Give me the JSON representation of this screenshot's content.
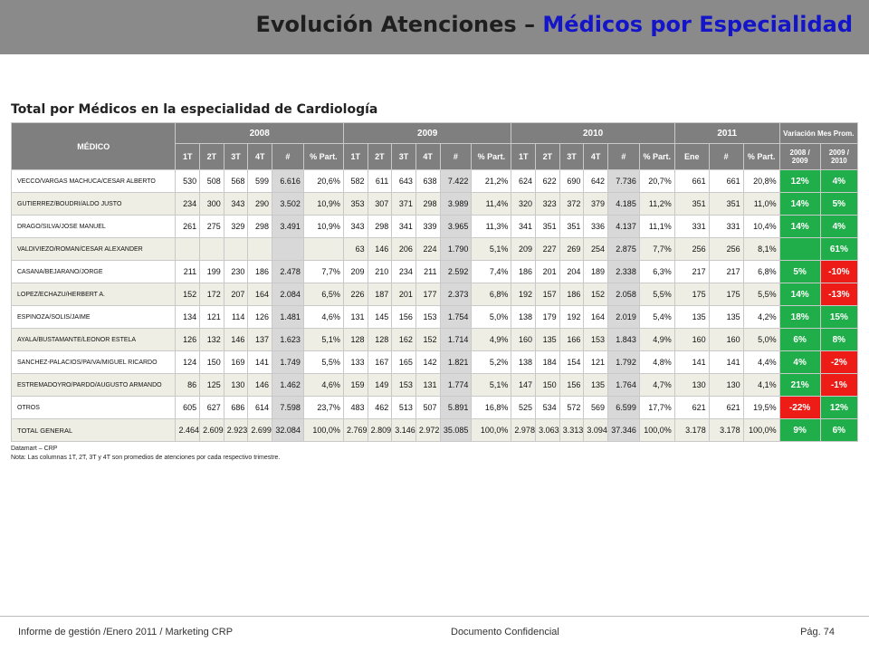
{
  "title": {
    "part1": "Evolución Atenciones – ",
    "part2": "Médicos por Especialidad"
  },
  "subtitle": "Total por Médicos en la especialidad de Cardiología",
  "table": {
    "medico_header": "MÉDICO",
    "years": [
      "2008",
      "2009",
      "2010",
      "2011"
    ],
    "variation_header": "Variación Mes Prom.",
    "var_cols": [
      "2008 / 2009",
      "2009 / 2010"
    ],
    "quarter_cols": [
      "1T",
      "2T",
      "3T",
      "4T",
      "#",
      "% Part."
    ],
    "cols_2010": [
      "1T",
      "2T",
      "3T",
      "4T",
      "#",
      "% Part."
    ],
    "cols_2011": [
      "Ene",
      "#",
      "% Part."
    ],
    "rows": [
      {
        "name": "VECCO/VARGAS MACHUCA/CESAR ALBERTO",
        "y2008": [
          "530",
          "508",
          "568",
          "599",
          "6.616",
          "20,6%"
        ],
        "y2009": [
          "582",
          "611",
          "643",
          "638",
          "7.422",
          "21,2%"
        ],
        "y2010": [
          "624",
          "622",
          "690",
          "642",
          "7.736",
          "20,7%"
        ],
        "y2011": [
          "661",
          "661",
          "20,8%"
        ],
        "v1": "12%",
        "v2": "4%"
      },
      {
        "name": "GUTIERREZ/BOUDRI/ALDO JUSTO",
        "y2008": [
          "234",
          "300",
          "343",
          "290",
          "3.502",
          "10,9%"
        ],
        "y2009": [
          "353",
          "307",
          "371",
          "298",
          "3.989",
          "11,4%"
        ],
        "y2010": [
          "320",
          "323",
          "372",
          "379",
          "4.185",
          "11,2%"
        ],
        "y2011": [
          "351",
          "351",
          "11,0%"
        ],
        "v1": "14%",
        "v2": "5%"
      },
      {
        "name": "DRAGO/SILVA/JOSE MANUEL",
        "y2008": [
          "261",
          "275",
          "329",
          "298",
          "3.491",
          "10,9%"
        ],
        "y2009": [
          "343",
          "298",
          "341",
          "339",
          "3.965",
          "11,3%"
        ],
        "y2010": [
          "341",
          "351",
          "351",
          "336",
          "4.137",
          "11,1%"
        ],
        "y2011": [
          "331",
          "331",
          "10,4%"
        ],
        "v1": "14%",
        "v2": "4%"
      },
      {
        "name": "VALDIVIEZO/ROMAN/CESAR ALEXANDER",
        "y2008": [
          "",
          "",
          "",
          "",
          "",
          ""
        ],
        "y2009": [
          "63",
          "146",
          "206",
          "224",
          "1.790",
          "5,1%"
        ],
        "y2010": [
          "209",
          "227",
          "269",
          "254",
          "2.875",
          "7,7%"
        ],
        "y2011": [
          "256",
          "256",
          "8,1%"
        ],
        "v1": "",
        "v2": "61%"
      },
      {
        "name": "CASANA/BEJARANO/JORGE",
        "y2008": [
          "211",
          "199",
          "230",
          "186",
          "2.478",
          "7,7%"
        ],
        "y2009": [
          "209",
          "210",
          "234",
          "211",
          "2.592",
          "7,4%"
        ],
        "y2010": [
          "186",
          "201",
          "204",
          "189",
          "2.338",
          "6,3%"
        ],
        "y2011": [
          "217",
          "217",
          "6,8%"
        ],
        "v1": "5%",
        "v2": "-10%"
      },
      {
        "name": "LOPEZ/ECHAZU/HERBERT A.",
        "y2008": [
          "152",
          "172",
          "207",
          "164",
          "2.084",
          "6,5%"
        ],
        "y2009": [
          "226",
          "187",
          "201",
          "177",
          "2.373",
          "6,8%"
        ],
        "y2010": [
          "192",
          "157",
          "186",
          "152",
          "2.058",
          "5,5%"
        ],
        "y2011": [
          "175",
          "175",
          "5,5%"
        ],
        "v1": "14%",
        "v2": "-13%"
      },
      {
        "name": "ESPINOZA/SOLIS/JAIME",
        "y2008": [
          "134",
          "121",
          "114",
          "126",
          "1.481",
          "4,6%"
        ],
        "y2009": [
          "131",
          "145",
          "156",
          "153",
          "1.754",
          "5,0%"
        ],
        "y2010": [
          "138",
          "179",
          "192",
          "164",
          "2.019",
          "5,4%"
        ],
        "y2011": [
          "135",
          "135",
          "4,2%"
        ],
        "v1": "18%",
        "v2": "15%"
      },
      {
        "name": "AYALA/BUSTAMANTE/LEONOR ESTELA",
        "y2008": [
          "126",
          "132",
          "146",
          "137",
          "1.623",
          "5,1%"
        ],
        "y2009": [
          "128",
          "128",
          "162",
          "152",
          "1.714",
          "4,9%"
        ],
        "y2010": [
          "160",
          "135",
          "166",
          "153",
          "1.843",
          "4,9%"
        ],
        "y2011": [
          "160",
          "160",
          "5,0%"
        ],
        "v1": "6%",
        "v2": "8%"
      },
      {
        "name": "SANCHEZ-PALACIOS/PAIVA/MIGUEL RICARDO",
        "y2008": [
          "124",
          "150",
          "169",
          "141",
          "1.749",
          "5,5%"
        ],
        "y2009": [
          "133",
          "167",
          "165",
          "142",
          "1.821",
          "5,2%"
        ],
        "y2010": [
          "138",
          "184",
          "154",
          "121",
          "1.792",
          "4,8%"
        ],
        "y2011": [
          "141",
          "141",
          "4,4%"
        ],
        "v1": "4%",
        "v2": "-2%"
      },
      {
        "name": "ESTREMADOYRO/PARDO/AUGUSTO ARMANDO",
        "y2008": [
          "86",
          "125",
          "130",
          "146",
          "1.462",
          "4,6%"
        ],
        "y2009": [
          "159",
          "149",
          "153",
          "131",
          "1.774",
          "5,1%"
        ],
        "y2010": [
          "147",
          "150",
          "156",
          "135",
          "1.764",
          "4,7%"
        ],
        "y2011": [
          "130",
          "130",
          "4,1%"
        ],
        "v1": "21%",
        "v2": "-1%"
      },
      {
        "name": "OTROS",
        "y2008": [
          "605",
          "627",
          "686",
          "614",
          "7.598",
          "23,7%"
        ],
        "y2009": [
          "483",
          "462",
          "513",
          "507",
          "5.891",
          "16,8%"
        ],
        "y2010": [
          "525",
          "534",
          "572",
          "569",
          "6.599",
          "17,7%"
        ],
        "y2011": [
          "621",
          "621",
          "19,5%"
        ],
        "v1": "-22%",
        "v2": "12%"
      },
      {
        "name": "TOTAL GENERAL",
        "y2008": [
          "2.464",
          "2.609",
          "2.923",
          "2.699",
          "32.084",
          "100,0%"
        ],
        "y2009": [
          "2.769",
          "2.809",
          "3.146",
          "2.972",
          "35.085",
          "100,0%"
        ],
        "y2010": [
          "2.978",
          "3.063",
          "3.313",
          "3.094",
          "37.346",
          "100,0%"
        ],
        "y2011": [
          "3.178",
          "3.178",
          "100,0%"
        ],
        "v1": "9%",
        "v2": "6%"
      }
    ]
  },
  "source": "Datamart – CRP",
  "note": "Nota: Las columnas 1T, 2T,  3T y 4T  son promedios de atenciones por cada respectivo trimestre.",
  "footer": {
    "left": "Informe de gestión /Enero 2011 / Marketing CRP",
    "center": "Documento Confidencial",
    "right": "Pág. 74"
  },
  "colors": {
    "header_gray": "#7f7f7f",
    "positive": "#1fae4a",
    "negative": "#ee1c16",
    "title_accent": "#1414c8"
  }
}
